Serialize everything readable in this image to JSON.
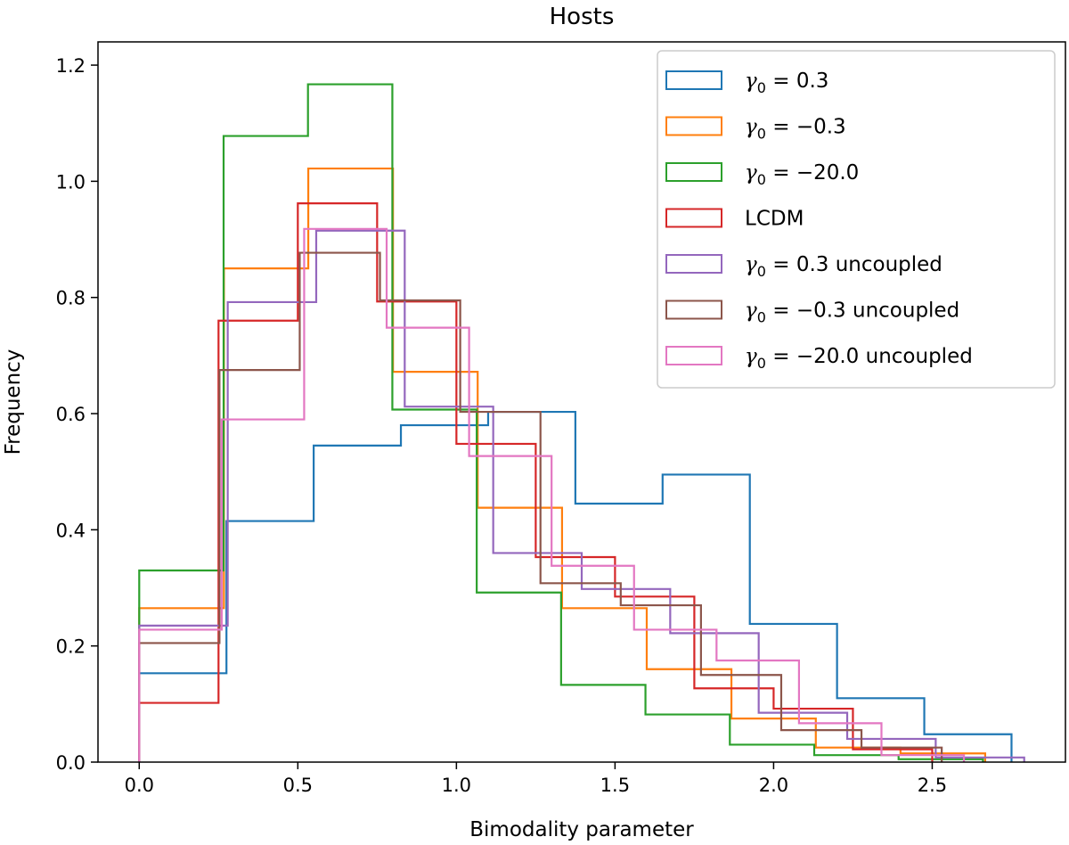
{
  "chart_data": {
    "type": "histogram-step",
    "title": "Hosts",
    "xlabel": "Bimodality parameter",
    "ylabel": "Frequency",
    "xlim": [
      -0.13,
      2.92
    ],
    "ylim": [
      0,
      1.24
    ],
    "xticks": [
      0.0,
      0.5,
      1.0,
      1.5,
      2.0,
      2.5
    ],
    "xtick_labels": [
      "0.0",
      "0.5",
      "1.0",
      "1.5",
      "2.0",
      "2.5"
    ],
    "yticks": [
      0.0,
      0.2,
      0.4,
      0.6,
      0.8,
      1.0,
      1.2
    ],
    "ytick_labels": [
      "0.0",
      "0.2",
      "0.4",
      "0.6",
      "0.8",
      "1.0",
      "1.2"
    ],
    "grid": false,
    "legend_position": "top-right",
    "series": [
      {
        "name": "γ0 = 0.3",
        "legend": {
          "sym": "γ",
          "sub": "0",
          "rest": " = 0.3"
        },
        "color": "#1f77b4",
        "edges": [
          0.0,
          0.275,
          0.55,
          0.825,
          1.1,
          1.375,
          1.65,
          1.925,
          2.2,
          2.475,
          2.75
        ],
        "values": [
          0.153,
          0.415,
          0.545,
          0.58,
          0.603,
          0.445,
          0.495,
          0.238,
          0.11,
          0.048
        ]
      },
      {
        "name": "γ0 = −0.3",
        "legend": {
          "sym": "γ",
          "sub": "0",
          "rest": " = −0.3"
        },
        "color": "#ff7f0e",
        "edges": [
          0.0,
          0.267,
          0.533,
          0.8,
          1.067,
          1.333,
          1.6,
          1.867,
          2.133,
          2.4,
          2.667
        ],
        "values": [
          0.265,
          0.85,
          1.022,
          0.672,
          0.438,
          0.265,
          0.16,
          0.075,
          0.025,
          0.015
        ]
      },
      {
        "name": "γ0 = −20.0",
        "legend": {
          "sym": "γ",
          "sub": "0",
          "rest": " = −20.0"
        },
        "color": "#2ca02c",
        "edges": [
          0.0,
          0.266,
          0.532,
          0.798,
          1.064,
          1.33,
          1.596,
          1.862,
          2.128,
          2.394,
          2.66
        ],
        "values": [
          0.33,
          1.078,
          1.167,
          0.607,
          0.292,
          0.133,
          0.082,
          0.03,
          0.012,
          0.005
        ]
      },
      {
        "name": "LCDM",
        "legend": {
          "sym": "",
          "sub": "",
          "rest": "LCDM"
        },
        "color": "#d62728",
        "edges": [
          0.0,
          0.25,
          0.5,
          0.75,
          1.0,
          1.25,
          1.5,
          1.75,
          2.0,
          2.25,
          2.5
        ],
        "values": [
          0.102,
          0.76,
          0.962,
          0.793,
          0.548,
          0.353,
          0.285,
          0.127,
          0.092,
          0.022
        ]
      },
      {
        "name": "γ0 = 0.3 uncoupled",
        "legend": {
          "sym": "γ",
          "sub": "0",
          "rest": " = 0.3 uncoupled"
        },
        "color": "#9467bd",
        "edges": [
          0.0,
          0.279,
          0.558,
          0.837,
          1.116,
          1.395,
          1.674,
          1.953,
          2.232,
          2.511,
          2.79
        ],
        "values": [
          0.235,
          0.792,
          0.915,
          0.612,
          0.36,
          0.298,
          0.222,
          0.085,
          0.04,
          0.008
        ]
      },
      {
        "name": "γ0 = −0.3 uncoupled",
        "legend": {
          "sym": "γ",
          "sub": "0",
          "rest": " = −0.3 uncoupled"
        },
        "color": "#8c564b",
        "edges": [
          0.0,
          0.253,
          0.506,
          0.759,
          1.012,
          1.265,
          1.518,
          1.771,
          2.024,
          2.277,
          2.53
        ],
        "values": [
          0.205,
          0.675,
          0.877,
          0.795,
          0.603,
          0.308,
          0.27,
          0.15,
          0.055,
          0.025
        ]
      },
      {
        "name": "γ0 = −20.0 uncoupled",
        "legend": {
          "sym": "γ",
          "sub": "0",
          "rest": " = −20.0 uncoupled"
        },
        "color": "#e377c2",
        "edges": [
          0.0,
          0.26,
          0.52,
          0.78,
          1.04,
          1.3,
          1.56,
          1.82,
          2.08,
          2.34,
          2.6
        ],
        "values": [
          0.228,
          0.59,
          0.918,
          0.748,
          0.527,
          0.338,
          0.228,
          0.175,
          0.067,
          0.012
        ]
      }
    ]
  }
}
